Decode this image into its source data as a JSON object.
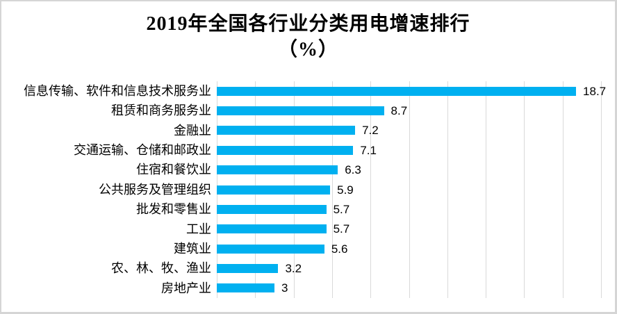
{
  "chart": {
    "title_line1": "2019年全国各行业分类用电增速排行",
    "title_line2": "（%）"
  },
  "chart_data": {
    "type": "bar",
    "orientation": "horizontal",
    "title": "2019年全国各行业分类用电增速排行（%）",
    "categories": [
      "信息传输、软件和信息技术服务业",
      "租赁和商务服务业",
      "金融业",
      "交通运输、仓储和邮政业",
      "住宿和餐饮业",
      "公共服务及管理组织",
      "批发和零售业",
      "工业",
      "建筑业",
      "农、林、牧、渔业",
      "房地产业"
    ],
    "values": [
      18.7,
      8.7,
      7.2,
      7.1,
      6.3,
      5.9,
      5.7,
      5.7,
      5.6,
      3.2,
      3
    ],
    "value_labels": [
      "18.7",
      "8.7",
      "7.2",
      "7.1",
      "6.3",
      "5.9",
      "5.7",
      "5.7",
      "5.6",
      "3.2",
      "3"
    ],
    "xlabel": "",
    "ylabel": "",
    "xlim": [
      0,
      20
    ],
    "grid_step": 2,
    "grid": true,
    "axis_tick_labels_visible": false,
    "legend": "none",
    "bar_color": "#00B0F0",
    "gridline_color": "#D9D9D9",
    "text_color": "#000000",
    "background_color": "#FFFFFF",
    "border_color": "#D5D5D5"
  }
}
